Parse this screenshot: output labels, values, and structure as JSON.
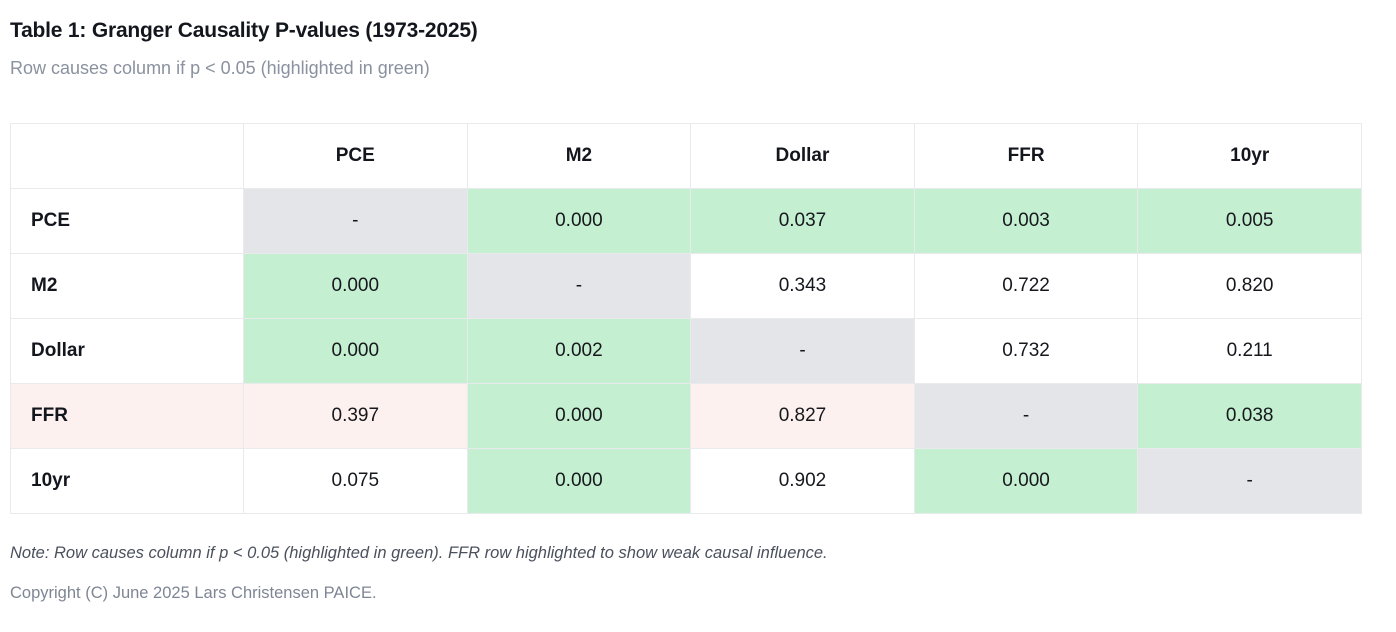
{
  "page": {
    "title": "Table 1: Granger Causality P-values (1973-2025)",
    "subtitle": "Row causes column if p < 0.05 (highlighted in green)",
    "note": "Note: Row causes column if p < 0.05 (highlighted in green). FFR row highlighted to show weak causal influence.",
    "copyright": "Copyright (C) June 2025 Lars Christensen PAICE."
  },
  "colors": {
    "significant_green": "#c5efd1",
    "diagonal_gray": "#e4e5e8",
    "weak_row_pink": "#fcf1ef",
    "table_border": "#e9eaec"
  },
  "chart_data": {
    "type": "table",
    "title": "Table 1: Granger Causality P-values (1973-2025)",
    "highlight_rule": "green = p < 0.05 (row Granger-causes column); gray = diagonal self cell; pink = FFR row highlighted to show weak causal influence",
    "columns": [
      "PCE",
      "M2",
      "Dollar",
      "FFR",
      "10yr"
    ],
    "rows": [
      {
        "label": "PCE",
        "label_style": "plain",
        "cells": [
          {
            "value": "-",
            "style": "diag"
          },
          {
            "value": "0.000",
            "style": "sig"
          },
          {
            "value": "0.037",
            "style": "sig"
          },
          {
            "value": "0.003",
            "style": "sig"
          },
          {
            "value": "0.005",
            "style": "sig"
          }
        ]
      },
      {
        "label": "M2",
        "label_style": "plain",
        "cells": [
          {
            "value": "0.000",
            "style": "sig"
          },
          {
            "value": "-",
            "style": "diag"
          },
          {
            "value": "0.343",
            "style": "plain"
          },
          {
            "value": "0.722",
            "style": "plain"
          },
          {
            "value": "0.820",
            "style": "plain"
          }
        ]
      },
      {
        "label": "Dollar",
        "label_style": "plain",
        "cells": [
          {
            "value": "0.000",
            "style": "sig"
          },
          {
            "value": "0.002",
            "style": "sig"
          },
          {
            "value": "-",
            "style": "diag"
          },
          {
            "value": "0.732",
            "style": "plain"
          },
          {
            "value": "0.211",
            "style": "plain"
          }
        ]
      },
      {
        "label": "FFR",
        "label_style": "weak",
        "cells": [
          {
            "value": "0.397",
            "style": "weak"
          },
          {
            "value": "0.000",
            "style": "sig"
          },
          {
            "value": "0.827",
            "style": "weak"
          },
          {
            "value": "-",
            "style": "diag"
          },
          {
            "value": "0.038",
            "style": "sig"
          }
        ]
      },
      {
        "label": "10yr",
        "label_style": "plain",
        "cells": [
          {
            "value": "0.075",
            "style": "plain"
          },
          {
            "value": "0.000",
            "style": "sig"
          },
          {
            "value": "0.902",
            "style": "plain"
          },
          {
            "value": "0.000",
            "style": "sig"
          },
          {
            "value": "-",
            "style": "diag"
          }
        ]
      }
    ]
  }
}
